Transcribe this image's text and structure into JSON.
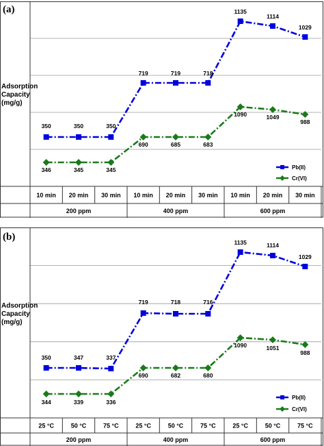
{
  "chart_data": [
    {
      "panel": "(a)",
      "type": "line",
      "ylabel": "Adsorption Capacity (mg/g)",
      "categories": [
        "10 min",
        "20 min",
        "30 min",
        "10 min",
        "20 min",
        "30 min",
        "10 min",
        "20 min",
        "30 min"
      ],
      "groups": [
        {
          "label": "200 ppm",
          "start": 0,
          "end": 2
        },
        {
          "label": "400 ppm",
          "start": 3,
          "end": 5
        },
        {
          "label": "600 ppm",
          "start": 6,
          "end": 8
        }
      ],
      "legend_position": "right",
      "grid": true,
      "series": [
        {
          "name": "Pb(II)",
          "color": "#0000dd",
          "marker": "square",
          "values": [
            350,
            350,
            350,
            719,
            719,
            718,
            1135,
            1114,
            1029
          ],
          "labels": [
            "350",
            "350",
            "350",
            "719",
            "719",
            "718",
            "1135",
            "1114",
            "1029"
          ]
        },
        {
          "name": "Cr(VI)",
          "color": "#1a7a1a",
          "marker": "diamond",
          "values": [
            346,
            345,
            345,
            690,
            685,
            683,
            1090,
            1049,
            988
          ],
          "labels": [
            "346",
            "345",
            "345",
            "690",
            "685",
            "683",
            "1090",
            "1049",
            "988"
          ]
        }
      ]
    },
    {
      "panel": "(b)",
      "type": "line",
      "ylabel": "Adsorption Capacity (mg/g)",
      "categories": [
        "25 °C",
        "50 °C",
        "75 °C",
        "25 °C",
        "50 °C",
        "75 °C",
        "25 °C",
        "50 °C",
        "75 °C"
      ],
      "groups": [
        {
          "label": "200 ppm",
          "start": 0,
          "end": 2
        },
        {
          "label": "400 ppm",
          "start": 3,
          "end": 5
        },
        {
          "label": "600 ppm",
          "start": 6,
          "end": 8
        }
      ],
      "legend_position": "right",
      "grid": true,
      "series": [
        {
          "name": "Pb(II)",
          "color": "#0000dd",
          "marker": "square",
          "values": [
            350,
            347,
            337,
            719,
            718,
            716,
            1135,
            1114,
            1029
          ],
          "labels": [
            "350",
            "347",
            "337",
            "719",
            "718",
            "716",
            "1135",
            "1114",
            "1029"
          ]
        },
        {
          "name": "Cr(VI)",
          "color": "#1a7a1a",
          "marker": "diamond",
          "values": [
            344,
            339,
            336,
            690,
            682,
            680,
            1090,
            1051,
            988
          ],
          "labels": [
            "344",
            "339",
            "336",
            "690",
            "682",
            "680",
            "1090",
            "1051",
            "988"
          ]
        }
      ]
    }
  ]
}
